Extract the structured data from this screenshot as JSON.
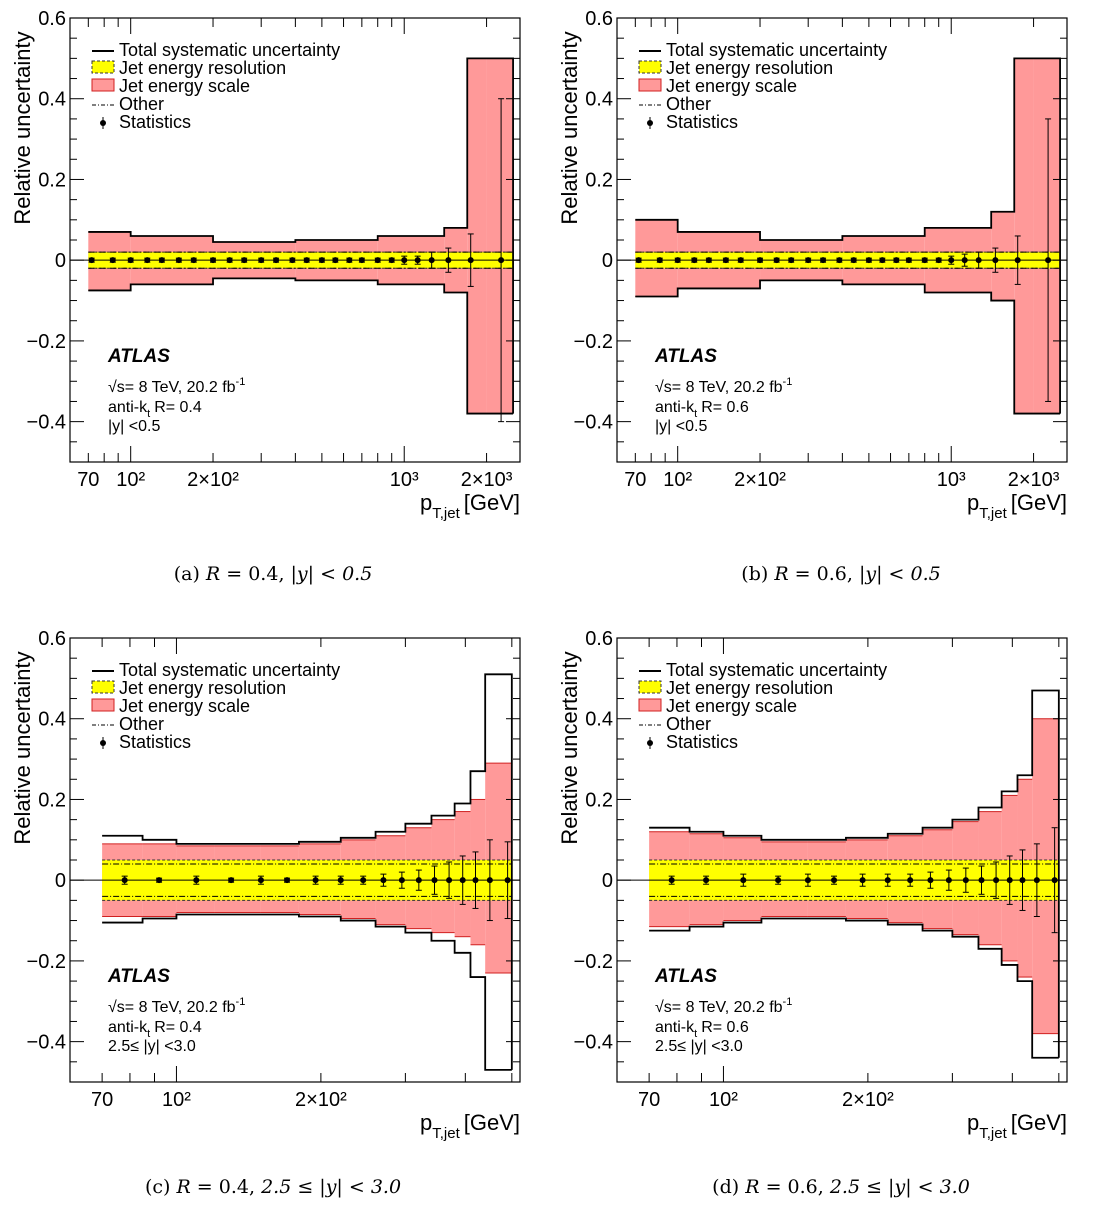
{
  "chart_data": [
    {
      "type": "area",
      "caption_label": "(a)",
      "caption_R": "0.4",
      "caption_y": "|y| < 0.5",
      "ylabel": "Relative uncertainty",
      "xlabel_main": "p",
      "xlabel_sub": "T,jet",
      "xlabel_unit": "[GeV]",
      "ylim": [
        -0.5,
        0.6
      ],
      "xlim": [
        60,
        2650
      ],
      "x_scale": "log",
      "yticks": [
        "0.6",
        "0.4",
        "0.2",
        "0",
        "−0.2",
        "−0.4"
      ],
      "ytick_values": [
        0.6,
        0.4,
        0.2,
        0,
        -0.2,
        -0.4
      ],
      "xtick_labels": [
        {
          "value": 70,
          "text": "70"
        },
        {
          "value": 100,
          "text": "10²"
        },
        {
          "value": 200,
          "text": "2×10²"
        },
        {
          "value": 1000,
          "text": "10³"
        },
        {
          "value": 2000,
          "text": "2×10³"
        }
      ],
      "legend": {
        "total": "Total systematic uncertainty",
        "jer": "Jet energy resolution",
        "jes": "Jet energy scale",
        "other": "Other",
        "stat": "Statistics"
      },
      "atlas": "ATLAS",
      "energy": "√s= 8 TeV, 20.2 fb",
      "lumi_exp": "-1",
      "algo": "anti-k",
      "algo_sub": "t",
      "radius": "R= 0.4",
      "rapidity": "|y| <0.5",
      "bins": [
        [
          70,
          100,
          0.07,
          -0.075,
          0.07,
          -0.075
        ],
        [
          100,
          200,
          0.06,
          -0.06,
          0.06,
          -0.06
        ],
        [
          200,
          400,
          0.045,
          -0.045,
          0.045,
          -0.045
        ],
        [
          400,
          800,
          0.05,
          -0.05,
          0.05,
          -0.05
        ],
        [
          800,
          1400,
          0.06,
          -0.06,
          0.06,
          -0.06
        ],
        [
          1400,
          1700,
          0.08,
          -0.08,
          0.08,
          -0.08
        ],
        [
          1700,
          2000,
          0.5,
          -0.38,
          0.5,
          -0.38
        ],
        [
          2000,
          2500,
          0.5,
          -0.38,
          0.5,
          -0.38
        ]
      ],
      "jer_band": 0.02,
      "other_band": 0.02,
      "stat_points": [
        [
          72,
          0.005
        ],
        [
          86,
          0.005
        ],
        [
          100,
          0.005
        ],
        [
          115,
          0.005
        ],
        [
          130,
          0.005
        ],
        [
          150,
          0.005
        ],
        [
          170,
          0.005
        ],
        [
          200,
          0.005
        ],
        [
          230,
          0.005
        ],
        [
          260,
          0.005
        ],
        [
          300,
          0.005
        ],
        [
          340,
          0.005
        ],
        [
          390,
          0.005
        ],
        [
          440,
          0.005
        ],
        [
          500,
          0.005
        ],
        [
          560,
          0.005
        ],
        [
          630,
          0.005
        ],
        [
          700,
          0.005
        ],
        [
          800,
          0.005
        ],
        [
          900,
          0.005
        ],
        [
          1000,
          0.01
        ],
        [
          1120,
          0.01
        ],
        [
          1260,
          0.02
        ],
        [
          1450,
          0.03
        ],
        [
          1750,
          0.065
        ],
        [
          2260,
          0.4
        ]
      ]
    },
    {
      "type": "area",
      "caption_label": "(b)",
      "caption_R": "0.6",
      "caption_y": "|y| < 0.5",
      "ylabel": "Relative uncertainty",
      "xlabel_main": "p",
      "xlabel_sub": "T,jet",
      "xlabel_unit": "[GeV]",
      "ylim": [
        -0.5,
        0.6
      ],
      "xlim": [
        60,
        2650
      ],
      "x_scale": "log",
      "yticks": [
        "0.6",
        "0.4",
        "0.2",
        "0",
        "−0.2",
        "−0.4"
      ],
      "ytick_values": [
        0.6,
        0.4,
        0.2,
        0,
        -0.2,
        -0.4
      ],
      "xtick_labels": [
        {
          "value": 70,
          "text": "70"
        },
        {
          "value": 100,
          "text": "10²"
        },
        {
          "value": 200,
          "text": "2×10²"
        },
        {
          "value": 1000,
          "text": "10³"
        },
        {
          "value": 2000,
          "text": "2×10³"
        }
      ],
      "legend": {
        "total": "Total systematic uncertainty",
        "jer": "Jet energy resolution",
        "jes": "Jet energy scale",
        "other": "Other",
        "stat": "Statistics"
      },
      "atlas": "ATLAS",
      "energy": "√s= 8 TeV, 20.2 fb",
      "lumi_exp": "-1",
      "algo": "anti-k",
      "algo_sub": "t",
      "radius": "R= 0.6",
      "rapidity": "|y| <0.5",
      "bins": [
        [
          70,
          100,
          0.1,
          -0.09,
          0.1,
          -0.09
        ],
        [
          100,
          200,
          0.07,
          -0.07,
          0.07,
          -0.07
        ],
        [
          200,
          400,
          0.05,
          -0.05,
          0.05,
          -0.05
        ],
        [
          400,
          800,
          0.06,
          -0.06,
          0.06,
          -0.06
        ],
        [
          800,
          1400,
          0.08,
          -0.08,
          0.08,
          -0.08
        ],
        [
          1400,
          1700,
          0.12,
          -0.1,
          0.12,
          -0.1
        ],
        [
          1700,
          2000,
          0.5,
          -0.38,
          0.5,
          -0.38
        ],
        [
          2000,
          2500,
          0.5,
          -0.38,
          0.5,
          -0.38
        ]
      ],
      "jer_band": 0.02,
      "other_band": 0.02,
      "stat_points": [
        [
          72,
          0.005
        ],
        [
          86,
          0.005
        ],
        [
          100,
          0.005
        ],
        [
          115,
          0.005
        ],
        [
          130,
          0.005
        ],
        [
          150,
          0.005
        ],
        [
          170,
          0.005
        ],
        [
          200,
          0.005
        ],
        [
          230,
          0.005
        ],
        [
          260,
          0.005
        ],
        [
          300,
          0.005
        ],
        [
          340,
          0.005
        ],
        [
          390,
          0.005
        ],
        [
          440,
          0.005
        ],
        [
          500,
          0.005
        ],
        [
          560,
          0.005
        ],
        [
          630,
          0.005
        ],
        [
          700,
          0.005
        ],
        [
          800,
          0.005
        ],
        [
          900,
          0.005
        ],
        [
          1000,
          0.01
        ],
        [
          1120,
          0.015
        ],
        [
          1260,
          0.02
        ],
        [
          1450,
          0.03
        ],
        [
          1750,
          0.06
        ],
        [
          2260,
          0.35
        ]
      ]
    },
    {
      "type": "area",
      "caption_label": "(c)",
      "caption_R": "0.4",
      "caption_y": "2.5 ≤ |y| < 3.0",
      "ylabel": "Relative uncertainty",
      "xlabel_main": "p",
      "xlabel_sub": "T,jet",
      "xlabel_unit": "[GeV]",
      "ylim": [
        -0.5,
        0.6
      ],
      "xlim": [
        60,
        520
      ],
      "x_scale": "log",
      "yticks": [
        "0.6",
        "0.4",
        "0.2",
        "0",
        "−0.2",
        "−0.4"
      ],
      "ytick_values": [
        0.6,
        0.4,
        0.2,
        0,
        -0.2,
        -0.4
      ],
      "xtick_labels": [
        {
          "value": 70,
          "text": "70"
        },
        {
          "value": 100,
          "text": "10²"
        },
        {
          "value": 200,
          "text": "2×10²"
        }
      ],
      "legend": {
        "total": "Total systematic uncertainty",
        "jer": "Jet energy resolution",
        "jes": "Jet energy scale",
        "other": "Other",
        "stat": "Statistics"
      },
      "atlas": "ATLAS",
      "energy": "√s= 8 TeV, 20.2 fb",
      "lumi_exp": "-1",
      "algo": "anti-k",
      "algo_sub": "t",
      "radius": "R= 0.4",
      "rapidity": "2.5≤ |y| <3.0",
      "bins": [
        [
          70,
          85,
          0.11,
          -0.105,
          0.09,
          -0.09
        ],
        [
          85,
          100,
          0.1,
          -0.095,
          0.09,
          -0.09
        ],
        [
          100,
          120,
          0.09,
          -0.085,
          0.085,
          -0.08
        ],
        [
          120,
          150,
          0.09,
          -0.085,
          0.085,
          -0.08
        ],
        [
          150,
          180,
          0.09,
          -0.085,
          0.085,
          -0.08
        ],
        [
          180,
          220,
          0.095,
          -0.09,
          0.09,
          -0.085
        ],
        [
          220,
          260,
          0.105,
          -0.1,
          0.1,
          -0.095
        ],
        [
          260,
          300,
          0.12,
          -0.115,
          0.11,
          -0.11
        ],
        [
          300,
          340,
          0.14,
          -0.13,
          0.13,
          -0.12
        ],
        [
          340,
          380,
          0.16,
          -0.15,
          0.15,
          -0.13
        ],
        [
          380,
          410,
          0.19,
          -0.18,
          0.17,
          -0.14
        ],
        [
          410,
          440,
          0.27,
          -0.24,
          0.2,
          -0.16
        ],
        [
          440,
          500,
          0.51,
          -0.47,
          0.29,
          -0.23
        ]
      ],
      "jer_band": 0.05,
      "other_band": 0.04,
      "stat_points": [
        [
          78,
          0.01
        ],
        [
          92,
          0.005
        ],
        [
          110,
          0.01
        ],
        [
          130,
          0.005
        ],
        [
          150,
          0.01
        ],
        [
          170,
          0.005
        ],
        [
          195,
          0.01
        ],
        [
          220,
          0.01
        ],
        [
          245,
          0.01
        ],
        [
          270,
          0.015
        ],
        [
          295,
          0.02
        ],
        [
          320,
          0.025
        ],
        [
          345,
          0.035
        ],
        [
          370,
          0.045
        ],
        [
          395,
          0.06
        ],
        [
          420,
          0.07
        ],
        [
          450,
          0.1
        ],
        [
          490,
          0.095
        ]
      ]
    },
    {
      "type": "area",
      "caption_label": "(d)",
      "caption_R": "0.6",
      "caption_y": "2.5 ≤ |y| < 3.0",
      "ylabel": "Relative uncertainty",
      "xlabel_main": "p",
      "xlabel_sub": "T,jet",
      "xlabel_unit": "[GeV]",
      "ylim": [
        -0.5,
        0.6
      ],
      "xlim": [
        60,
        520
      ],
      "x_scale": "log",
      "yticks": [
        "0.6",
        "0.4",
        "0.2",
        "0",
        "−0.2",
        "−0.4"
      ],
      "ytick_values": [
        0.6,
        0.4,
        0.2,
        0,
        -0.2,
        -0.4
      ],
      "xtick_labels": [
        {
          "value": 70,
          "text": "70"
        },
        {
          "value": 100,
          "text": "10²"
        },
        {
          "value": 200,
          "text": "2×10²"
        }
      ],
      "legend": {
        "total": "Total systematic uncertainty",
        "jer": "Jet energy resolution",
        "jes": "Jet energy scale",
        "other": "Other",
        "stat": "Statistics"
      },
      "atlas": "ATLAS",
      "energy": "√s= 8 TeV, 20.2 fb",
      "lumi_exp": "-1",
      "algo": "anti-k",
      "algo_sub": "t",
      "radius": "R= 0.6",
      "rapidity": "2.5≤ |y| <3.0",
      "bins": [
        [
          70,
          85,
          0.13,
          -0.125,
          0.12,
          -0.115
        ],
        [
          85,
          100,
          0.12,
          -0.115,
          0.115,
          -0.11
        ],
        [
          100,
          120,
          0.11,
          -0.105,
          0.105,
          -0.1
        ],
        [
          120,
          150,
          0.1,
          -0.095,
          0.095,
          -0.09
        ],
        [
          150,
          180,
          0.1,
          -0.095,
          0.095,
          -0.09
        ],
        [
          180,
          220,
          0.105,
          -0.1,
          0.1,
          -0.095
        ],
        [
          220,
          260,
          0.115,
          -0.11,
          0.11,
          -0.105
        ],
        [
          260,
          300,
          0.13,
          -0.125,
          0.125,
          -0.12
        ],
        [
          300,
          340,
          0.15,
          -0.14,
          0.145,
          -0.135
        ],
        [
          340,
          380,
          0.18,
          -0.17,
          0.17,
          -0.16
        ],
        [
          380,
          410,
          0.22,
          -0.21,
          0.21,
          -0.2
        ],
        [
          410,
          440,
          0.26,
          -0.25,
          0.25,
          -0.24
        ],
        [
          440,
          500,
          0.47,
          -0.44,
          0.4,
          -0.38
        ]
      ],
      "jer_band": 0.05,
      "other_band": 0.04,
      "stat_points": [
        [
          78,
          0.01
        ],
        [
          92,
          0.01
        ],
        [
          110,
          0.015
        ],
        [
          130,
          0.01
        ],
        [
          150,
          0.015
        ],
        [
          170,
          0.01
        ],
        [
          195,
          0.015
        ],
        [
          220,
          0.015
        ],
        [
          245,
          0.015
        ],
        [
          270,
          0.02
        ],
        [
          295,
          0.025
        ],
        [
          320,
          0.03
        ],
        [
          345,
          0.035
        ],
        [
          370,
          0.045
        ],
        [
          395,
          0.06
        ],
        [
          420,
          0.075
        ],
        [
          450,
          0.09
        ],
        [
          490,
          0.13
        ]
      ]
    }
  ]
}
